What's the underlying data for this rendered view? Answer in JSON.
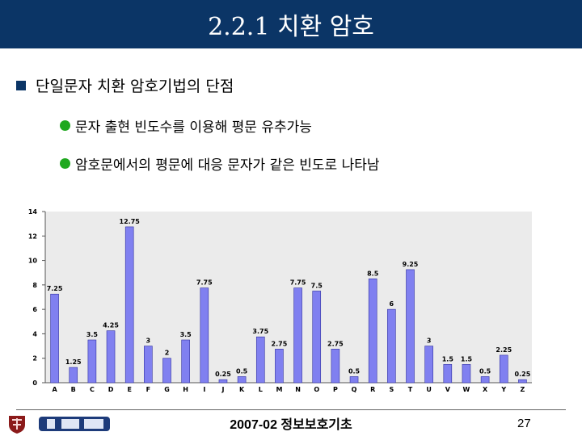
{
  "title": "2.2.1 치환 암호",
  "bullet1": "단일문자 치환 암호기법의 단점",
  "bullets2": [
    "문자 출현 빈도수를 이용해 평문 유추가능",
    "암호문에서의 평문에 대응 문자가 같은 빈도로 나타남"
  ],
  "chart_data": {
    "type": "bar",
    "categories": [
      "A",
      "B",
      "C",
      "D",
      "E",
      "F",
      "G",
      "H",
      "I",
      "J",
      "K",
      "L",
      "M",
      "N",
      "O",
      "P",
      "Q",
      "R",
      "S",
      "T",
      "U",
      "V",
      "W",
      "X",
      "Y",
      "Z"
    ],
    "values": [
      7.25,
      1.25,
      3.5,
      4.25,
      12.75,
      3,
      2,
      3.5,
      7.75,
      0.25,
      0.5,
      3.75,
      2.75,
      7.75,
      7.5,
      2.75,
      0.5,
      8.5,
      6,
      9.25,
      3,
      1.5,
      1.5,
      0.5,
      2.25,
      0.25
    ],
    "data_labels": [
      "7.25",
      "1.25",
      "3.5",
      "4.25",
      "12.75",
      "3",
      "2",
      "3.5",
      "7.75",
      "0.25",
      "0.5",
      "3.75",
      "2.75",
      "7.75",
      "7.5",
      "2.75",
      "0.5",
      "8.5",
      "6",
      "9.25",
      "3",
      "1.5",
      "1.5",
      "0.5",
      "2.25",
      "0.25"
    ],
    "yticks": [
      "0",
      "2",
      "4",
      "6",
      "8",
      "10",
      "12",
      "14"
    ],
    "ylim": [
      0,
      14
    ],
    "bar_color": "#8080f0"
  },
  "footer": {
    "text": "2007-02 정보보호기초",
    "page": "27"
  },
  "colors": {
    "title_bg": "#0b3566",
    "bullet_dot": "#1fa81f"
  }
}
